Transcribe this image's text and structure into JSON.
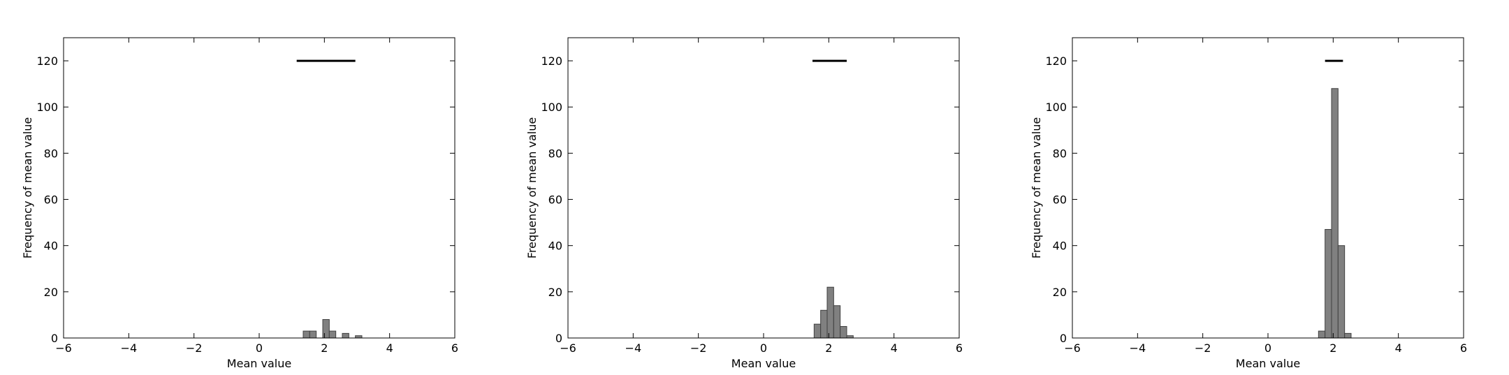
{
  "chart_data": [
    {
      "type": "bar",
      "xlabel": "Mean value",
      "ylabel": "Frequency of mean value",
      "xlim": [
        -6,
        6
      ],
      "ylim": [
        0,
        130
      ],
      "xticks": [
        -6,
        -4,
        -2,
        0,
        2,
        4,
        6
      ],
      "xtick_labels": [
        "−6",
        "−4",
        "−2",
        "0",
        "2",
        "4",
        "6"
      ],
      "yticks": [
        0,
        20,
        40,
        60,
        80,
        100,
        120
      ],
      "ytick_labels": [
        "0",
        "20",
        "40",
        "60",
        "80",
        "100",
        "120"
      ],
      "bins": [
        {
          "x0": 1.35,
          "x1": 1.55,
          "count": 3
        },
        {
          "x0": 1.55,
          "x1": 1.75,
          "count": 3
        },
        {
          "x0": 1.95,
          "x1": 2.15,
          "count": 8
        },
        {
          "x0": 2.15,
          "x1": 2.35,
          "count": 3
        },
        {
          "x0": 2.55,
          "x1": 2.75,
          "count": 2
        },
        {
          "x0": 2.95,
          "x1": 3.15,
          "count": 1
        }
      ],
      "interval": {
        "x0": 1.15,
        "x1": 2.95,
        "y": 120
      }
    },
    {
      "type": "bar",
      "xlabel": "Mean value",
      "ylabel": "Frequency of mean value",
      "xlim": [
        -6,
        6
      ],
      "ylim": [
        0,
        130
      ],
      "xticks": [
        -6,
        -4,
        -2,
        0,
        2,
        4,
        6
      ],
      "xtick_labels": [
        "−6",
        "−4",
        "−2",
        "0",
        "2",
        "4",
        "6"
      ],
      "yticks": [
        0,
        20,
        40,
        60,
        80,
        100,
        120
      ],
      "ytick_labels": [
        "0",
        "20",
        "40",
        "60",
        "80",
        "100",
        "120"
      ],
      "bins": [
        {
          "x0": 1.55,
          "x1": 1.75,
          "count": 6
        },
        {
          "x0": 1.75,
          "x1": 1.95,
          "count": 12
        },
        {
          "x0": 1.95,
          "x1": 2.15,
          "count": 22
        },
        {
          "x0": 2.15,
          "x1": 2.35,
          "count": 14
        },
        {
          "x0": 2.35,
          "x1": 2.55,
          "count": 5
        },
        {
          "x0": 2.55,
          "x1": 2.75,
          "count": 1
        }
      ],
      "interval": {
        "x0": 1.5,
        "x1": 2.55,
        "y": 120
      }
    },
    {
      "type": "bar",
      "xlabel": "Mean value",
      "ylabel": "Frequency of mean value",
      "xlim": [
        -6,
        6
      ],
      "ylim": [
        0,
        130
      ],
      "xticks": [
        -6,
        -4,
        -2,
        0,
        2,
        4,
        6
      ],
      "xtick_labels": [
        "−6",
        "−4",
        "−2",
        "0",
        "2",
        "4",
        "6"
      ],
      "yticks": [
        0,
        20,
        40,
        60,
        80,
        100,
        120
      ],
      "ytick_labels": [
        "0",
        "20",
        "40",
        "60",
        "80",
        "100",
        "120"
      ],
      "bins": [
        {
          "x0": 1.55,
          "x1": 1.75,
          "count": 3
        },
        {
          "x0": 1.75,
          "x1": 1.95,
          "count": 47
        },
        {
          "x0": 1.95,
          "x1": 2.15,
          "count": 108
        },
        {
          "x0": 2.15,
          "x1": 2.35,
          "count": 40
        },
        {
          "x0": 2.35,
          "x1": 2.55,
          "count": 2
        }
      ],
      "interval": {
        "x0": 1.75,
        "x1": 2.3,
        "y": 120
      }
    }
  ],
  "colors": {
    "bar_fill": "#808080",
    "bar_stroke": "#404040",
    "interval_line": "#000000",
    "axes": "#000000"
  }
}
